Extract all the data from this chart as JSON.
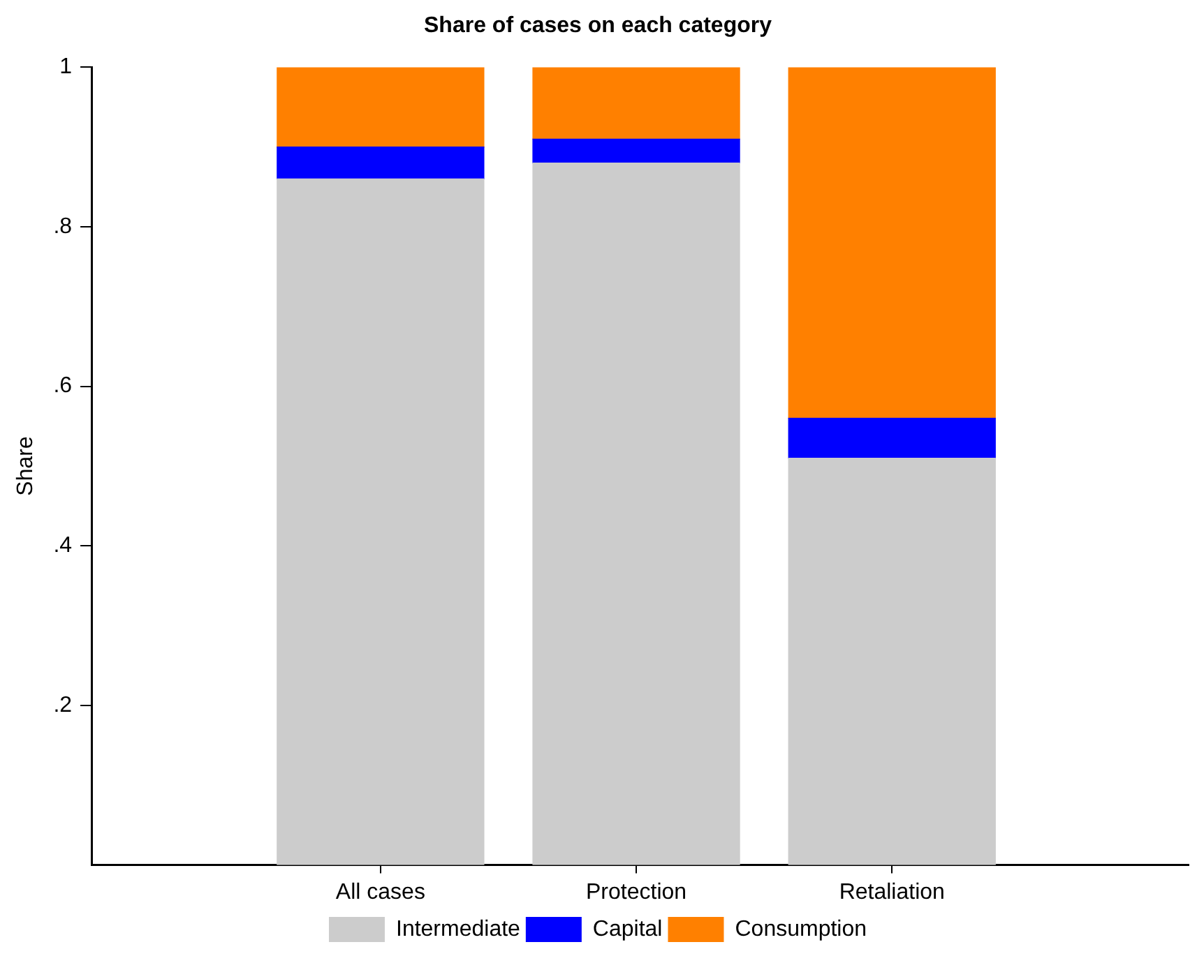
{
  "chart_data": {
    "type": "bar",
    "title": "Share of cases on each category",
    "ylabel": "Share",
    "categories": [
      "All cases",
      "Protection",
      "Retaliation"
    ],
    "stacked": true,
    "series": [
      {
        "name": "Intermediate",
        "color": "#cccccc",
        "values": [
          0.86,
          0.88,
          0.51
        ]
      },
      {
        "name": "Capital",
        "color": "#0000ff",
        "values": [
          0.04,
          0.03,
          0.05
        ]
      },
      {
        "name": "Consumption",
        "color": "#ff8000",
        "values": [
          0.1,
          0.09,
          0.44
        ]
      }
    ],
    "ylim": [
      0,
      1
    ],
    "yticks": [
      {
        "value": 0.2,
        "label": ".2"
      },
      {
        "value": 0.4,
        "label": ".4"
      },
      {
        "value": 0.6,
        "label": ".6"
      },
      {
        "value": 0.8,
        "label": ".8"
      },
      1
    ],
    "grid": false,
    "legend": "bottom"
  }
}
